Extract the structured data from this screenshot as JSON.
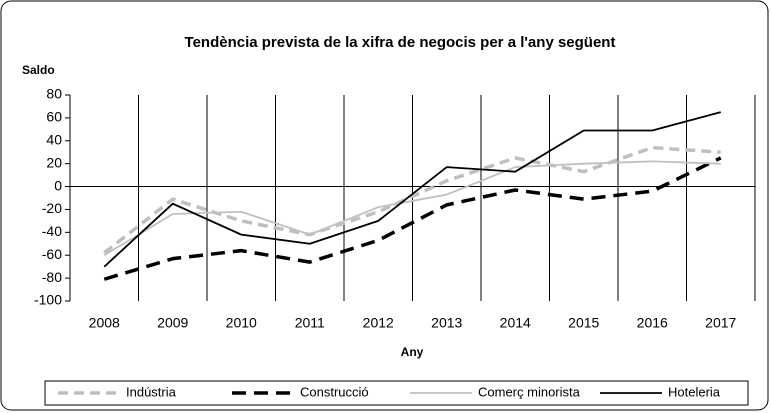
{
  "chart_data": {
    "type": "line",
    "title": "Tendència prevista de la xifra de negocis per a l'any següent",
    "y_label": "Saldo",
    "x_label": "Any",
    "categories": [
      "2008",
      "2009",
      "2010",
      "2011",
      "2012",
      "2013",
      "2014",
      "2015",
      "2016",
      "2017"
    ],
    "series": [
      {
        "name": "Indústria",
        "color": "#bfbfbf",
        "width": 3.5,
        "dash": "10 6",
        "values": [
          -58,
          -11,
          -30,
          -42,
          -22,
          5,
          25,
          13,
          34,
          30
        ]
      },
      {
        "name": "Construcció",
        "color": "#000000",
        "width": 3.5,
        "dash": "14 8",
        "values": [
          -81,
          -63,
          -56,
          -66,
          -47,
          -16,
          -3,
          -11,
          -4,
          25
        ]
      },
      {
        "name": "Comerç minorista",
        "color": "#c0c0c0",
        "width": 1.8,
        "dash": "none",
        "values": [
          -60,
          -24,
          -22,
          -42,
          -18,
          -7,
          17,
          20,
          22,
          20
        ]
      },
      {
        "name": "Hoteleria",
        "color": "#000000",
        "width": 1.8,
        "dash": "none",
        "values": [
          -70,
          -15,
          -42,
          -50,
          -30,
          17,
          13,
          49,
          49,
          65
        ]
      }
    ],
    "ylim": [
      -100,
      80
    ],
    "yticks": [
      -100,
      -80,
      -60,
      -40,
      -20,
      0,
      20,
      40,
      60,
      80
    ],
    "legend": "bottom"
  }
}
